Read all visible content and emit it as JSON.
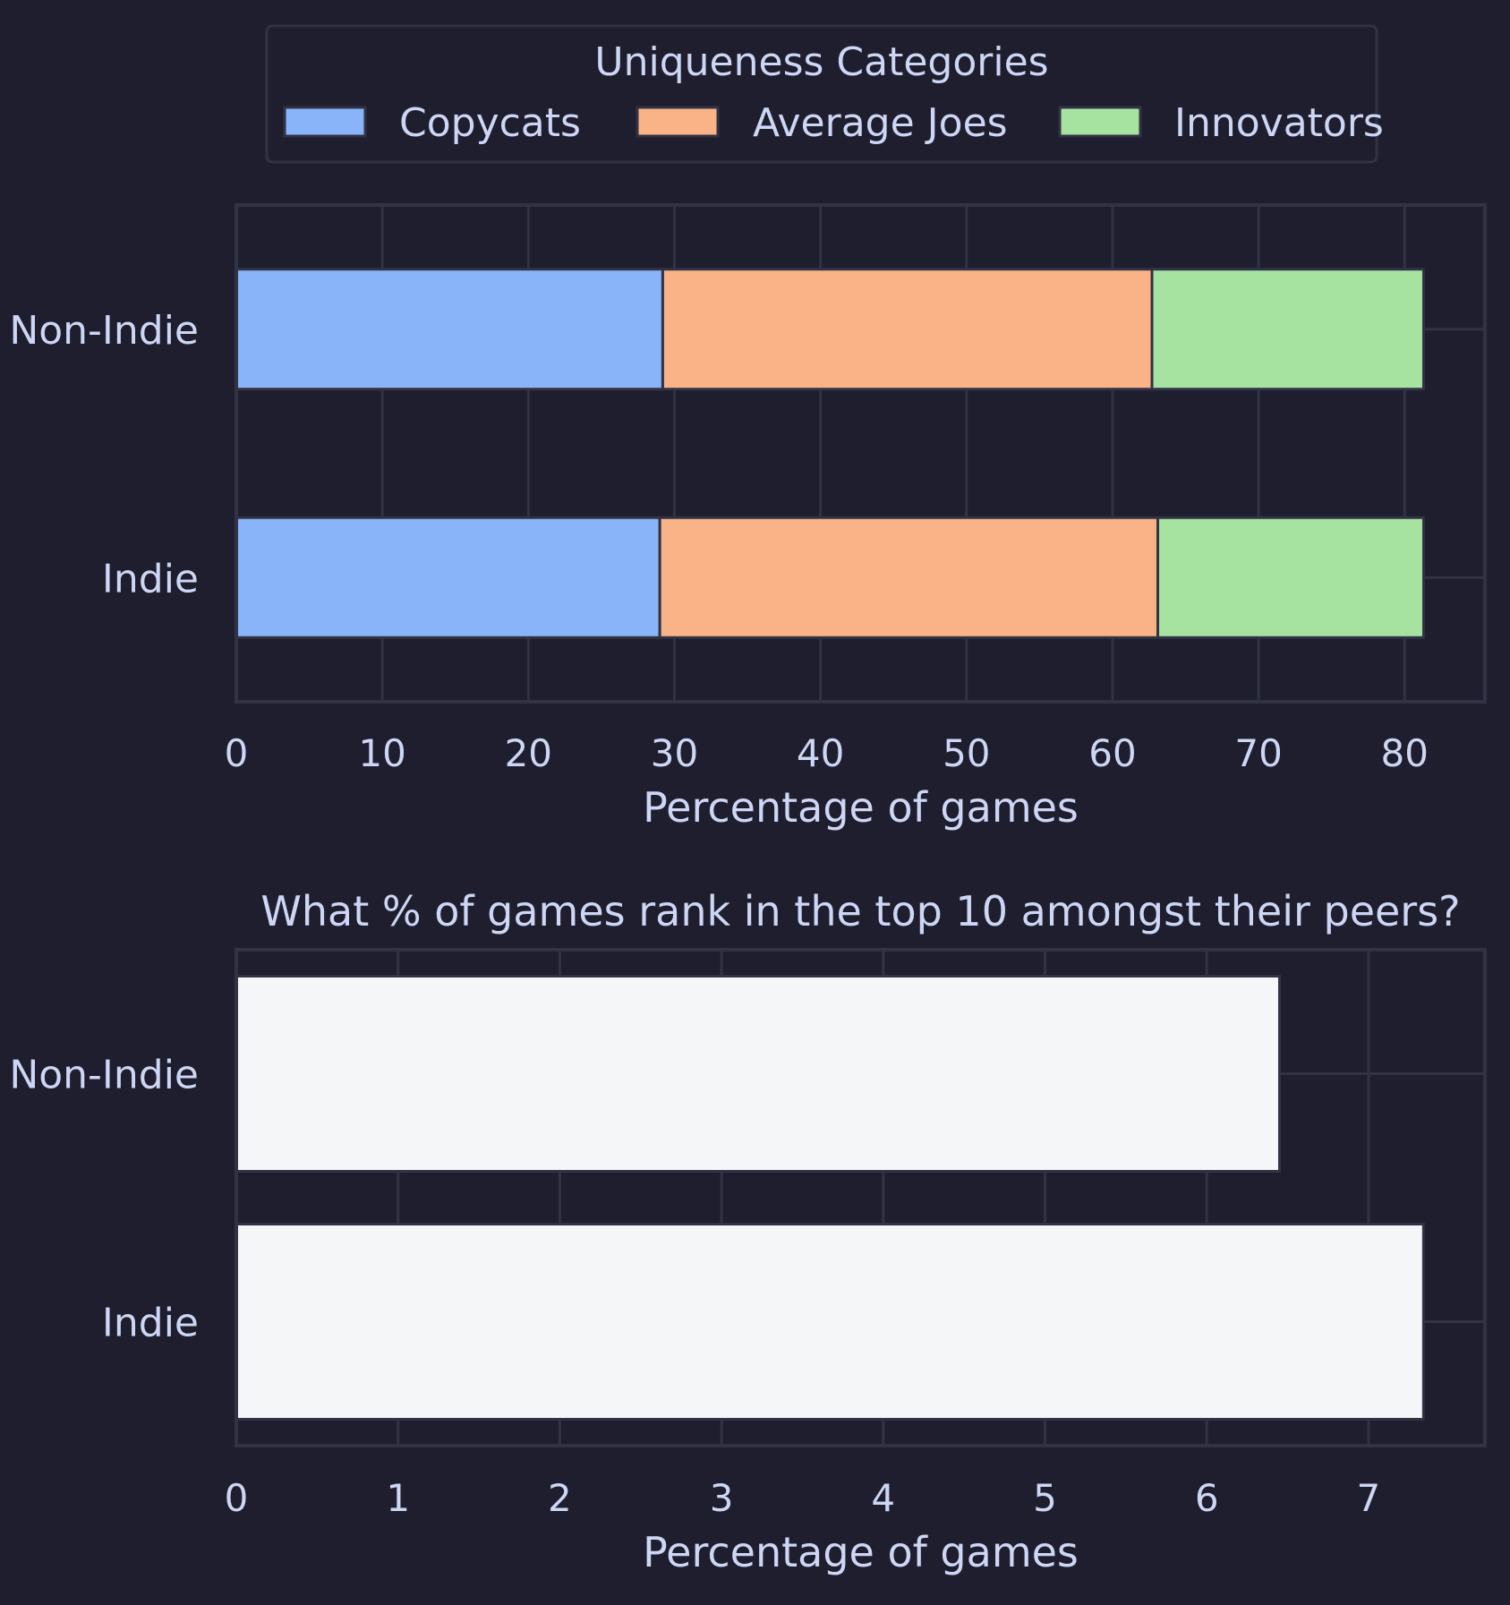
{
  "colors": {
    "background": "#1e1e2e",
    "grid": "#313244",
    "text": "#cdd6f4",
    "bar_edge": "#313244",
    "legend_border": "#313244"
  },
  "chart_data": [
    {
      "type": "bar",
      "orientation": "horizontal",
      "stacked": true,
      "title": "",
      "categories": [
        "Non-Indie",
        "Indie"
      ],
      "series": [
        {
          "name": "Copycats",
          "color": "#89b4fa",
          "values": [
            29.2,
            29.0
          ]
        },
        {
          "name": "Average Joes",
          "color": "#fab387",
          "values": [
            33.5,
            34.1
          ]
        },
        {
          "name": "Innovators",
          "color": "#a6e3a1",
          "values": [
            18.6,
            18.2
          ]
        }
      ],
      "xlabel": "Percentage of games",
      "ylabel": "",
      "xlim": [
        0,
        85.5
      ],
      "xticks": [
        0,
        10,
        20,
        30,
        40,
        50,
        60,
        70,
        80
      ],
      "grid": true,
      "legend": {
        "title": "Uniqueness Categories",
        "placement": "top-center",
        "entries": [
          "Copycats",
          "Average Joes",
          "Innovators"
        ]
      }
    },
    {
      "type": "bar",
      "orientation": "horizontal",
      "stacked": false,
      "title": "What % of games rank in the top 10 amongst their peers?",
      "categories": [
        "Non-Indie",
        "Indie"
      ],
      "series": [
        {
          "name": "Top 10",
          "color": "#f5f6f8",
          "values": [
            6.45,
            7.34
          ]
        }
      ],
      "xlabel": "Percentage of games",
      "ylabel": "",
      "xlim": [
        0,
        7.72
      ],
      "xticks": [
        0,
        1,
        2,
        3,
        4,
        5,
        6,
        7
      ],
      "grid": true
    }
  ]
}
